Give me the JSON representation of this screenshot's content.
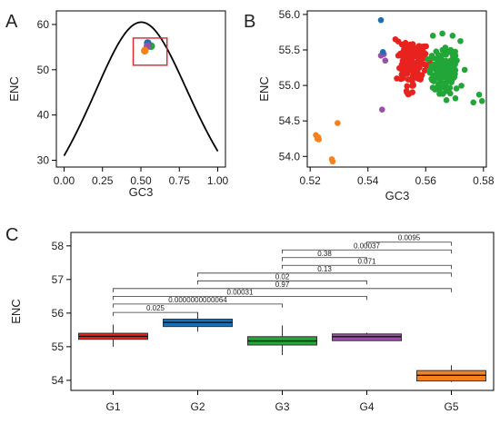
{
  "chart_data": [
    {
      "panel": "A",
      "type": "line",
      "xlabel": "GC3",
      "ylabel": "ENC",
      "xlim": [
        -0.05,
        1.05
      ],
      "ylim": [
        28.5,
        63
      ],
      "xticks": [
        "0.00",
        "0.25",
        "0.50",
        "0.75",
        "1.00"
      ],
      "yticks": [
        "30",
        "40",
        "50",
        "60"
      ],
      "curve": "ENC = 2 + GC3 + 29/(GC3^2 + (1-GC3)^2)",
      "highlight_box": {
        "x": [
          0.45,
          0.67
        ],
        "y": [
          51,
          57
        ]
      },
      "point_clusters": [
        {
          "color": "#e8231f",
          "x": 0.555,
          "y": 55.3
        },
        {
          "color": "#21a637",
          "x": 0.567,
          "y": 55.2
        },
        {
          "color": "#1f6fb0",
          "x": 0.544,
          "y": 55.9
        },
        {
          "color": "#9b4fa8",
          "x": 0.543,
          "y": 55.2
        },
        {
          "color": "#f5821f",
          "x": 0.525,
          "y": 54.2
        }
      ]
    },
    {
      "panel": "B",
      "type": "scatter",
      "xlabel": "GC3",
      "ylabel": "ENC",
      "xlim": [
        0.519,
        0.581
      ],
      "ylim": [
        53.85,
        56.05
      ],
      "xticks": [
        "0.52",
        "0.54",
        "0.56",
        "0.58"
      ],
      "yticks": [
        "54.0",
        "54.5",
        "55.0",
        "55.5",
        "56.0"
      ],
      "series": [
        {
          "color": "#f5821f",
          "points": [
            [
              0.522,
              54.3
            ],
            [
              0.5225,
              54.25
            ],
            [
              0.5228,
              54.27
            ],
            [
              0.523,
              54.24
            ],
            [
              0.5275,
              53.96
            ],
            [
              0.5278,
              53.93
            ],
            [
              0.5295,
              54.47
            ]
          ]
        },
        {
          "color": "#9b4fa8",
          "points": [
            [
              0.5445,
              55.42
            ],
            [
              0.546,
              55.35
            ],
            [
              0.5449,
              54.66
            ],
            [
              0.5455,
              55.44
            ]
          ]
        },
        {
          "color": "#1f6fb0",
          "points": [
            [
              0.5445,
              55.92
            ],
            [
              0.5452,
              55.47
            ]
          ]
        },
        {
          "color": "#e8231f",
          "cluster": {
            "cx": 0.5555,
            "cy": 55.3,
            "sx": 0.0022,
            "sy": 0.15,
            "n": 150,
            "seed": 7
          },
          "points": [
            [
              0.5495,
              55.65
            ],
            [
              0.5505,
              55.62
            ],
            [
              0.553,
              55.6
            ],
            [
              0.5505,
              55.42
            ],
            [
              0.552,
              55.1
            ],
            [
              0.5557,
              55.0
            ],
            [
              0.5535,
              54.9
            ]
          ]
        },
        {
          "color": "#21a637",
          "cluster": {
            "cx": 0.5665,
            "cy": 55.2,
            "sx": 0.0025,
            "sy": 0.16,
            "n": 160,
            "seed": 13
          },
          "points": [
            [
              0.5625,
              55.7
            ],
            [
              0.5693,
              55.7
            ],
            [
              0.5703,
              55.42
            ],
            [
              0.5735,
              55.22
            ],
            [
              0.5785,
              54.87
            ],
            [
              0.5795,
              54.78
            ],
            [
              0.5765,
              54.76
            ]
          ]
        }
      ]
    },
    {
      "panel": "C",
      "type": "box",
      "ylabel": "ENC",
      "categories": [
        "G1",
        "G2",
        "G3",
        "G4",
        "G5"
      ],
      "ylim": [
        53.7,
        58.4
      ],
      "yticks": [
        "54",
        "55",
        "56",
        "57",
        "58"
      ],
      "boxes": [
        {
          "category": "G1",
          "color": "#e8231f",
          "min": 55.0,
          "q1": 55.22,
          "median": 55.31,
          "q3": 55.4,
          "max": 55.66
        },
        {
          "category": "G2",
          "color": "#1f6fb0",
          "min": 55.45,
          "q1": 55.6,
          "median": 55.72,
          "q3": 55.82,
          "max": 56.03
        },
        {
          "category": "G3",
          "color": "#21a637",
          "min": 54.75,
          "q1": 55.05,
          "median": 55.17,
          "q3": 55.3,
          "max": 55.63
        },
        {
          "category": "G4",
          "color": "#9b4fa8",
          "min": 55.18,
          "q1": 55.18,
          "median": 55.3,
          "q3": 55.38,
          "max": 55.42
        },
        {
          "category": "G5",
          "color": "#f5821f",
          "min": 53.95,
          "q1": 53.98,
          "median": 54.15,
          "q3": 54.29,
          "max": 54.45
        }
      ],
      "comparisons": [
        {
          "a": 0,
          "b": 1,
          "label": "0.025",
          "y": 56.02
        },
        {
          "a": 0,
          "b": 2,
          "label": "0.0000000000064",
          "y": 56.27
        },
        {
          "a": 0,
          "b": 3,
          "label": "0.00031",
          "y": 56.5
        },
        {
          "a": 0,
          "b": 4,
          "label": "0.97",
          "y": 56.73
        },
        {
          "a": 1,
          "b": 3,
          "label": "0.02",
          "y": 56.96
        },
        {
          "a": 1,
          "b": 4,
          "label": "0.13",
          "y": 57.19
        },
        {
          "a": 2,
          "b": 4,
          "label": "0.071",
          "y": 57.42
        },
        {
          "a": 2,
          "b": 3,
          "label": "0.38",
          "y": 57.65
        },
        {
          "a": 2,
          "b": 4,
          "label": "0.00037",
          "y": 57.88
        },
        {
          "a": 3,
          "b": 4,
          "label": "0.0095",
          "y": 58.11
        }
      ]
    }
  ]
}
